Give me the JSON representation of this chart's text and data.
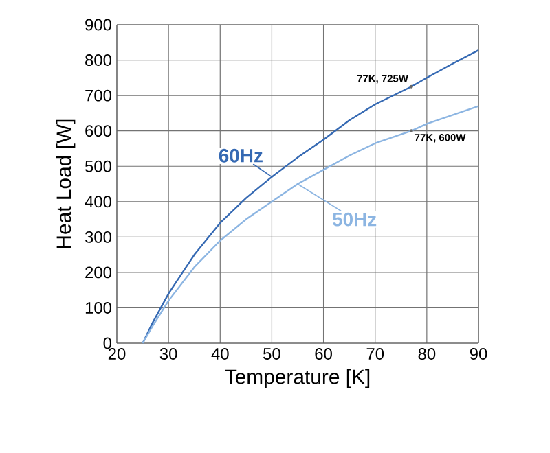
{
  "chart_data": {
    "type": "line",
    "xlabel": "Temperature [K]",
    "ylabel": "Heat Load [W]",
    "xlim": [
      20,
      90
    ],
    "ylim": [
      0,
      900
    ],
    "xticks": [
      20,
      30,
      40,
      50,
      60,
      70,
      80,
      90
    ],
    "yticks": [
      0,
      100,
      200,
      300,
      400,
      500,
      600,
      700,
      800,
      900
    ],
    "grid": true,
    "series": [
      {
        "name": "60Hz",
        "color": "#3569b3",
        "x": [
          25,
          27,
          30,
          35,
          40,
          45,
          50,
          55,
          60,
          65,
          70,
          77,
          80,
          85,
          90
        ],
        "values": [
          0,
          60,
          140,
          250,
          340,
          410,
          470,
          525,
          575,
          630,
          675,
          725,
          750,
          790,
          828
        ]
      },
      {
        "name": "50Hz",
        "color": "#8cb5e2",
        "x": [
          25,
          27,
          30,
          35,
          40,
          45,
          50,
          55,
          60,
          65,
          70,
          77,
          80,
          85,
          90
        ],
        "values": [
          0,
          50,
          120,
          215,
          290,
          350,
          400,
          450,
          490,
          530,
          565,
          600,
          620,
          645,
          670
        ]
      }
    ],
    "annotations": [
      {
        "text": "77K, 725W",
        "x": 77,
        "y": 725
      },
      {
        "text": "77K, 600W",
        "x": 77,
        "y": 600
      }
    ]
  }
}
